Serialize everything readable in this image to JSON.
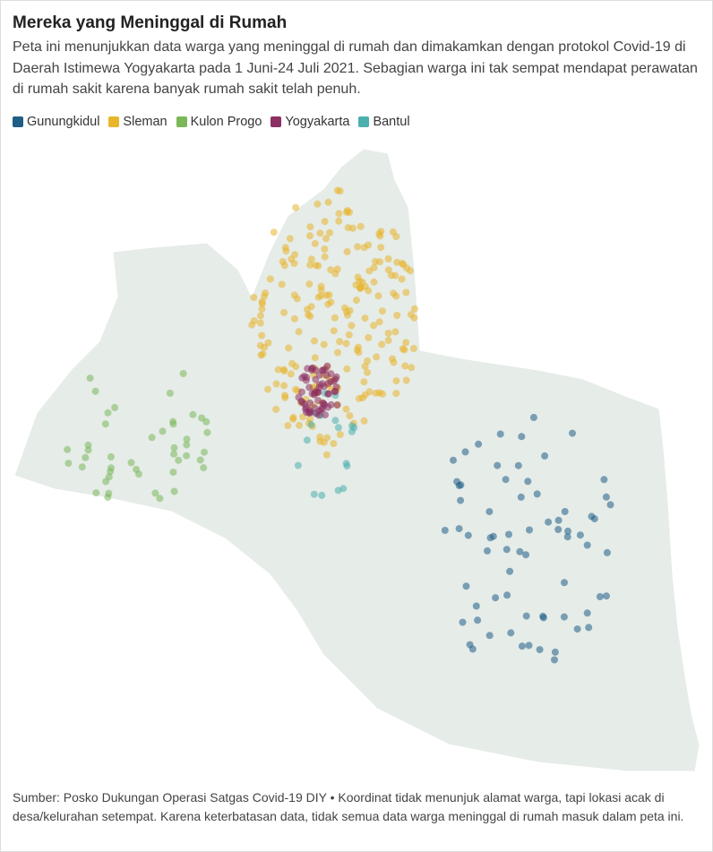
{
  "title": "Mereka yang Meninggal di Rumah",
  "subtitle": "Peta ini menunjukkan data warga yang meninggal di rumah dan dimakamkan dengan protokol Covid-19 di Daerah Istimewa Yogyakarta pada 1 Juni-24 Juli 2021. Sebagian warga ini tak sempat mendapat perawatan di rumah sakit karena banyak rumah sakit telah penuh.",
  "legend": [
    {
      "name": "Gunungkidul",
      "color": "#1f5f86"
    },
    {
      "name": "Sleman",
      "color": "#e8b52b"
    },
    {
      "name": "Kulon Progo",
      "color": "#7ab85a"
    },
    {
      "name": "Yogyakarta",
      "color": "#8c2f63"
    },
    {
      "name": "Bantul",
      "color": "#4bb0ad"
    }
  ],
  "source": "Sumber: Posko Dukungan Operasi Satgas Covid-19 DIY • Koordinat tidak menunjuk alamat warga, tapi lokasi acak di desa/kelurahan setempat. Karena keterbatasan data, tidak semua data warga meninggal di rumah masuk dalam peta ini."
}
